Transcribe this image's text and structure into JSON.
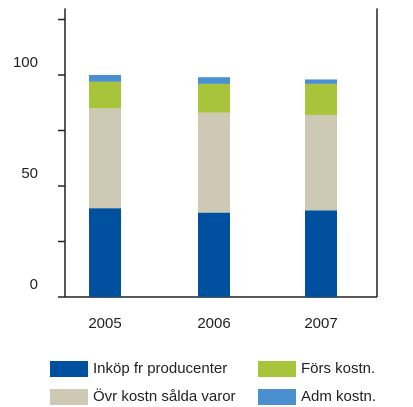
{
  "chart_data": {
    "type": "stacked_bar",
    "categories": [
      "2005",
      "2006",
      "2007"
    ],
    "series": [
      {
        "name": "Inköp fr producenter",
        "color": "#0050a0",
        "values": [
          40,
          38,
          39
        ]
      },
      {
        "name": "Övr kostn sålda varor",
        "color": "#cdc9b5",
        "values": [
          45,
          45,
          43
        ]
      },
      {
        "name": "Förs kostn.",
        "color": "#a8c43a",
        "values": [
          12,
          13,
          14
        ]
      },
      {
        "name": "Adm kostn.",
        "color": "#4a8fd0",
        "values": [
          3,
          3,
          2
        ]
      }
    ],
    "ylim": [
      0,
      130
    ],
    "yticks": [
      0,
      50,
      100
    ],
    "minor_yticks": [
      25,
      75,
      125
    ],
    "grid": false,
    "legend": "bottom"
  }
}
